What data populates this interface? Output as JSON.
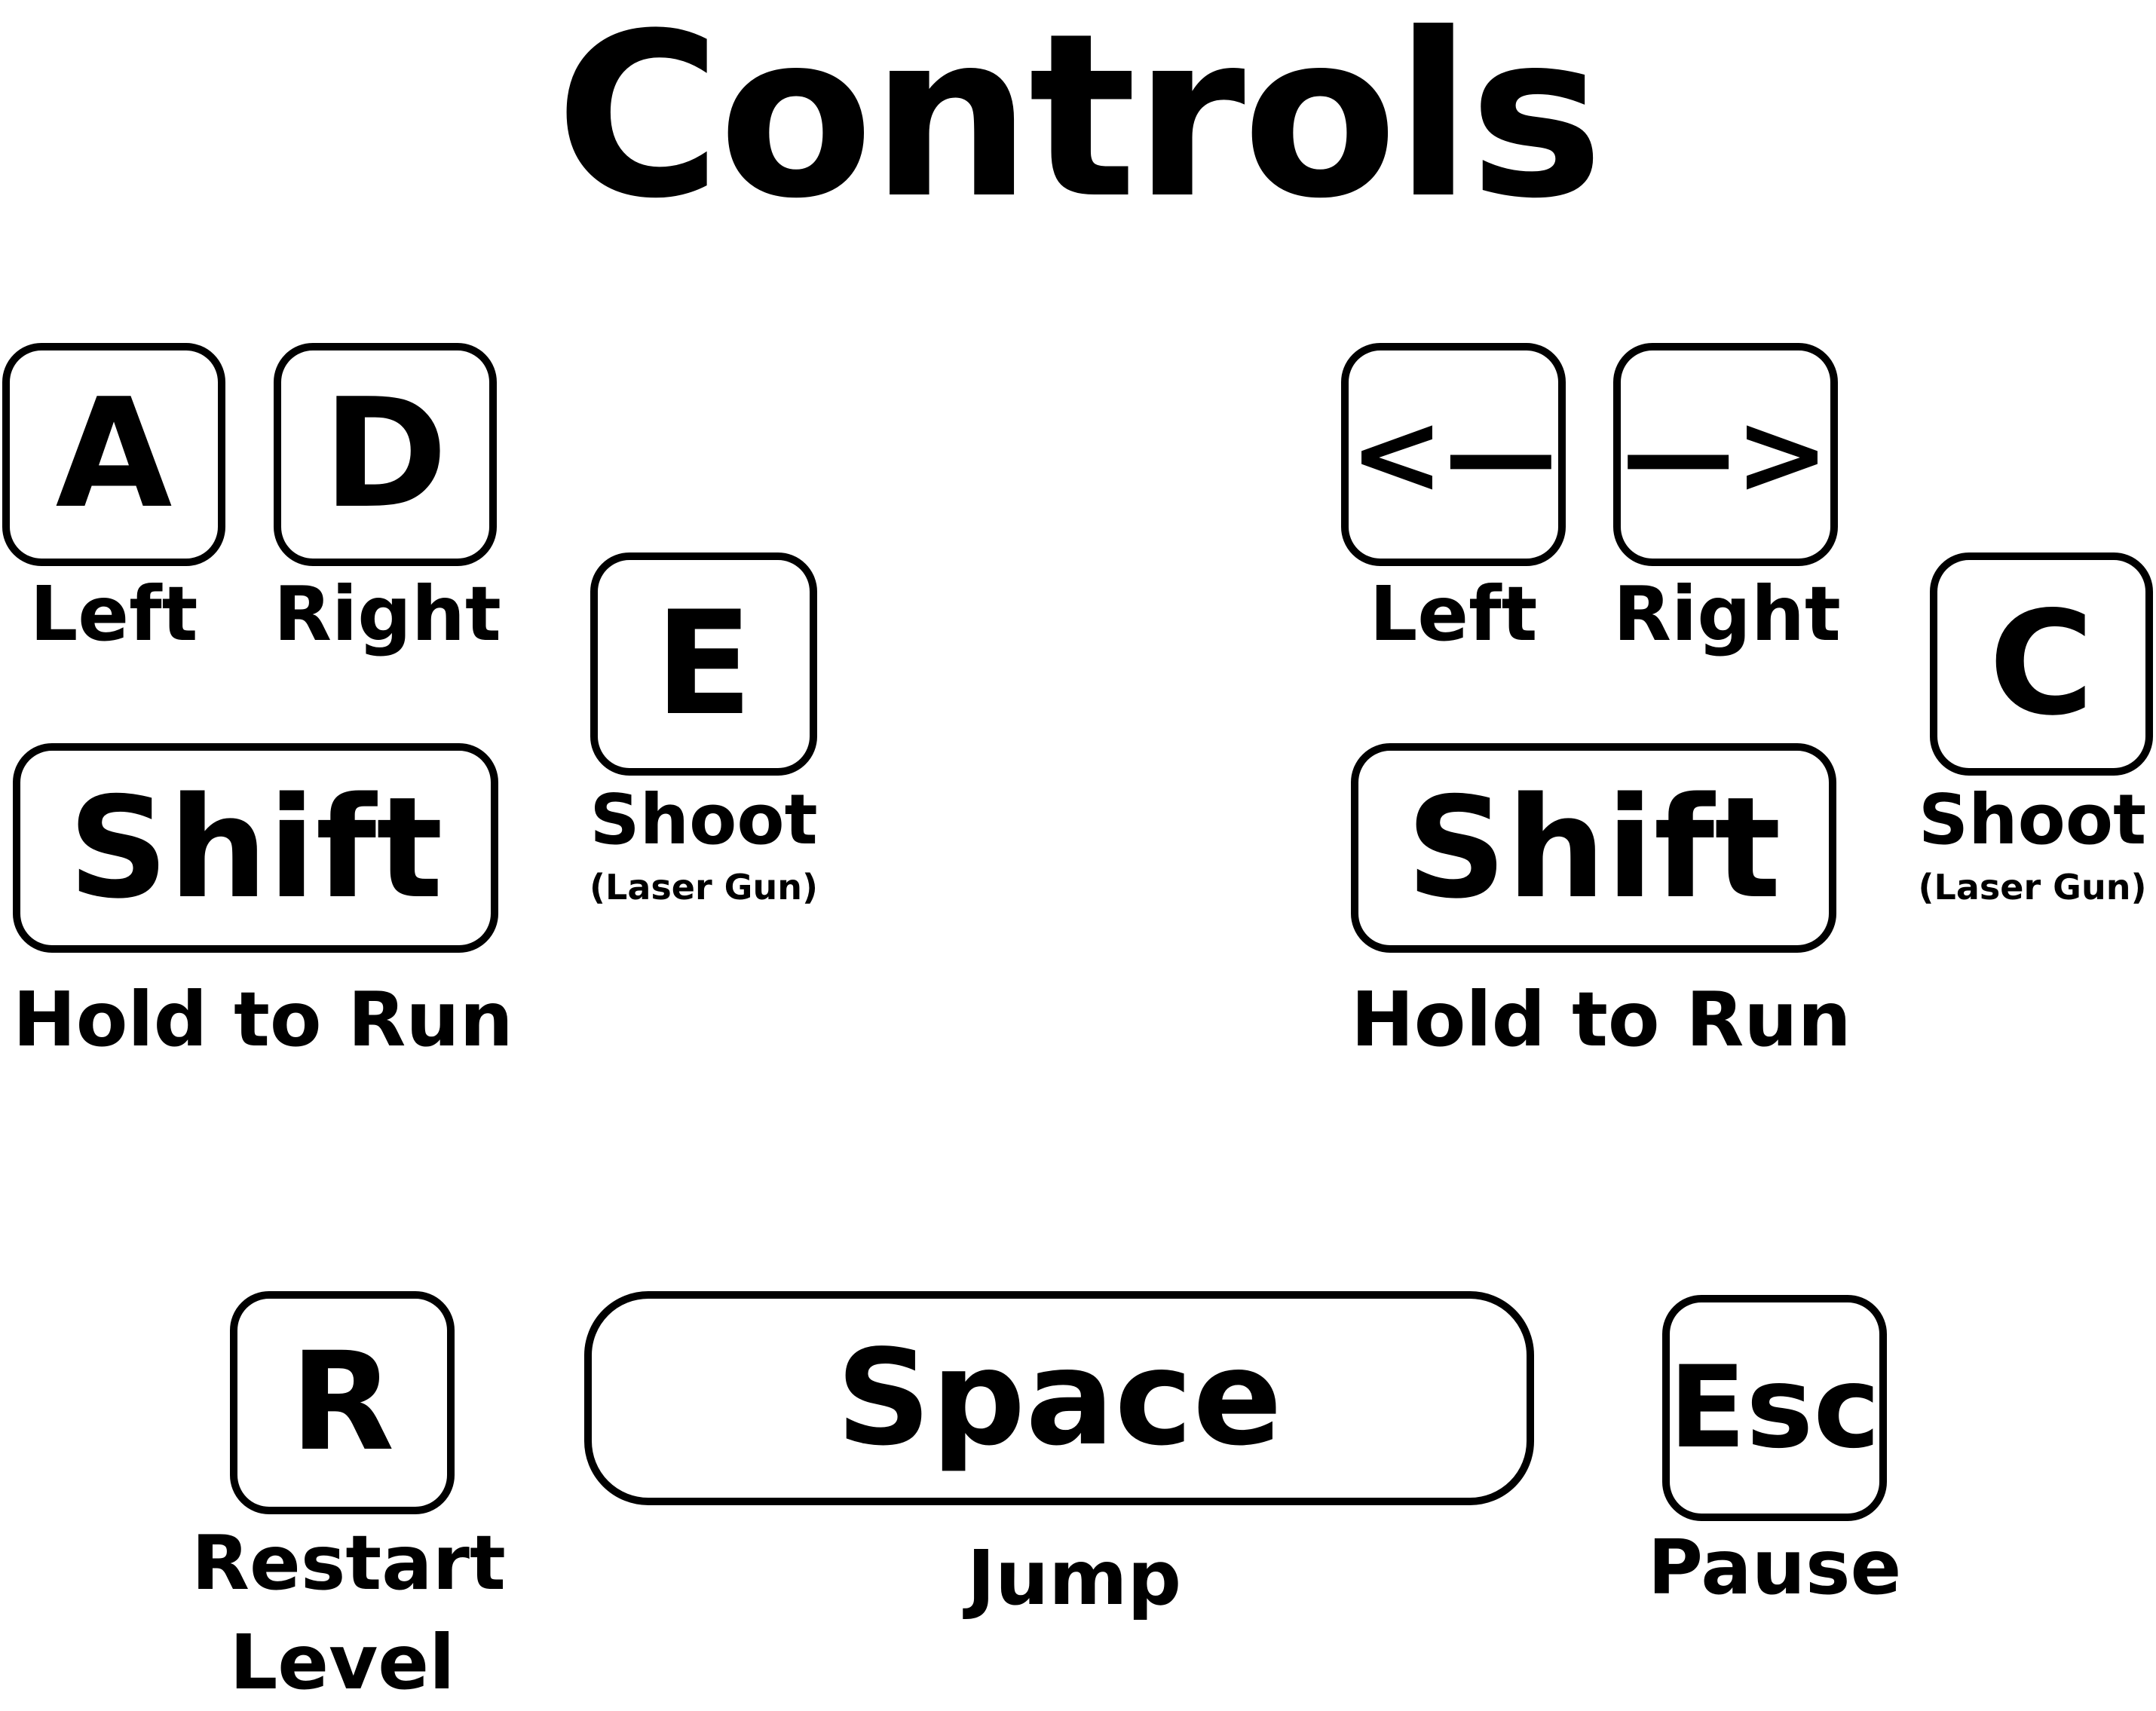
{
  "title": "Controls",
  "player_one": {
    "left_key": {
      "key": "A",
      "label": "Left"
    },
    "right_key": {
      "key": "D",
      "label": "Right"
    },
    "run_key": {
      "key": "Shift",
      "label": "Hold to Run"
    },
    "shoot_key": {
      "key": "E",
      "label": "Shoot",
      "sublabel": "(Laser Gun)"
    }
  },
  "player_two": {
    "left_key": {
      "key": "<—",
      "label": "Left"
    },
    "right_key": {
      "key": "—>",
      "label": "Right"
    },
    "run_key": {
      "key": "Shift",
      "label": "Hold to Run"
    },
    "shoot_key": {
      "key": "C",
      "label": "Shoot",
      "sublabel": "(Laser Gun)"
    }
  },
  "shared": {
    "restart_key": {
      "key": "R",
      "label_line1": "Restart",
      "label_line2": "Level"
    },
    "jump_key": {
      "key": "Space",
      "label": "Jump"
    },
    "pause_key": {
      "key": "Esc",
      "label": "Pause"
    }
  },
  "colors": {
    "ink": "#000000",
    "background": "#ffffff"
  }
}
